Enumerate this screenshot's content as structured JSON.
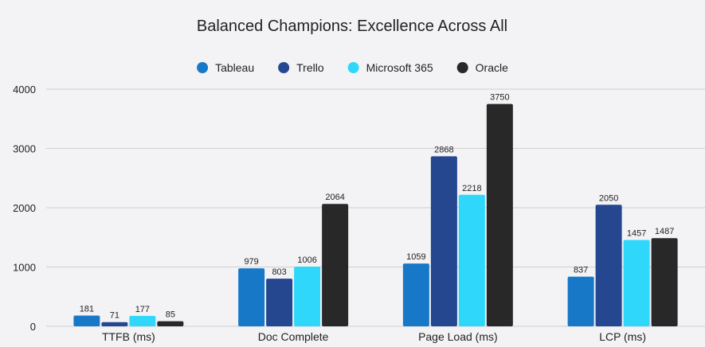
{
  "chart_data": {
    "type": "bar",
    "title": "Balanced Champions: Excellence Across All",
    "xlabel": "",
    "ylabel": "",
    "categories": [
      "TTFB (ms)",
      "Doc Complete",
      "Page Load (ms)",
      "LCP (ms)"
    ],
    "series": [
      {
        "name": "Tableau",
        "color": "#1878c8",
        "values": [
          181,
          979,
          1059,
          837
        ]
      },
      {
        "name": "Trello",
        "color": "#25478f",
        "values": [
          71,
          803,
          2868,
          2050
        ]
      },
      {
        "name": "Microsoft 365",
        "color": "#2fd8fb",
        "values": [
          177,
          1006,
          2218,
          1457
        ]
      },
      {
        "name": "Oracle",
        "color": "#282828",
        "values": [
          85,
          2064,
          3750,
          1487
        ]
      }
    ],
    "ylim": [
      0,
      4000
    ],
    "yticks": [
      0,
      1000,
      2000,
      3000,
      4000
    ],
    "grid": true,
    "legend_position": "top-center"
  }
}
